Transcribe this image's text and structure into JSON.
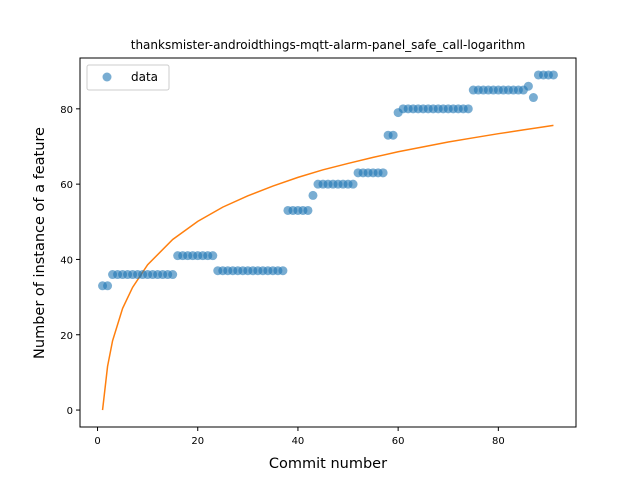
{
  "chart_data": {
    "type": "scatter",
    "title": "thanksmister-androidthings-mqtt-alarm-panel_safe_call-logarithm",
    "xlabel": "Commit number",
    "ylabel": "Number of instance of a feature",
    "xlim": [
      -3.5,
      95.5
    ],
    "ylim": [
      -4.5,
      93.5
    ],
    "xticks": [
      0,
      20,
      40,
      60,
      80
    ],
    "yticks": [
      0,
      20,
      40,
      60,
      80
    ],
    "grid": false,
    "legend_position": "upper-left",
    "colors": {
      "data": "#1f77b4",
      "fit": "#ff7f0e"
    },
    "series": [
      {
        "name": "data",
        "kind": "scatter",
        "x": [
          1,
          2,
          3,
          4,
          5,
          6,
          7,
          8,
          9,
          10,
          11,
          12,
          13,
          14,
          15,
          16,
          17,
          18,
          19,
          20,
          21,
          22,
          23,
          24,
          25,
          26,
          27,
          28,
          29,
          30,
          31,
          32,
          33,
          34,
          35,
          36,
          37,
          38,
          39,
          40,
          41,
          42,
          43,
          44,
          45,
          46,
          47,
          48,
          49,
          50,
          51,
          52,
          53,
          54,
          55,
          56,
          57,
          58,
          59,
          60,
          61,
          62,
          63,
          64,
          65,
          66,
          67,
          68,
          69,
          70,
          71,
          72,
          73,
          74,
          75,
          76,
          77,
          78,
          79,
          80,
          81,
          82,
          83,
          84,
          85,
          86,
          87,
          88,
          89,
          90,
          91
        ],
        "y": [
          33,
          33,
          36,
          36,
          36,
          36,
          36,
          36,
          36,
          36,
          36,
          36,
          36,
          36,
          36,
          41,
          41,
          41,
          41,
          41,
          41,
          41,
          41,
          37,
          37,
          37,
          37,
          37,
          37,
          37,
          37,
          37,
          37,
          37,
          37,
          37,
          37,
          53,
          53,
          53,
          53,
          53,
          57,
          60,
          60,
          60,
          60,
          60,
          60,
          60,
          60,
          63,
          63,
          63,
          63,
          63,
          63,
          73,
          73,
          79,
          80,
          80,
          80,
          80,
          80,
          80,
          80,
          80,
          80,
          80,
          80,
          80,
          80,
          80,
          85,
          85,
          85,
          85,
          85,
          85,
          85,
          85,
          85,
          85,
          85,
          86,
          83,
          89,
          89,
          89,
          89
        ]
      },
      {
        "kind": "line",
        "x": [
          1,
          2,
          3,
          5,
          7,
          10,
          15,
          20,
          25,
          30,
          35,
          40,
          45,
          50,
          55,
          60,
          65,
          70,
          75,
          80,
          85,
          91
        ],
        "y": [
          0,
          11.6,
          18.4,
          27.0,
          32.6,
          38.6,
          45.3,
          50.1,
          53.9,
          56.9,
          59.5,
          61.8,
          63.8,
          65.5,
          67.1,
          68.6,
          69.9,
          71.2,
          72.3,
          73.4,
          74.4,
          75.6
        ]
      }
    ]
  }
}
